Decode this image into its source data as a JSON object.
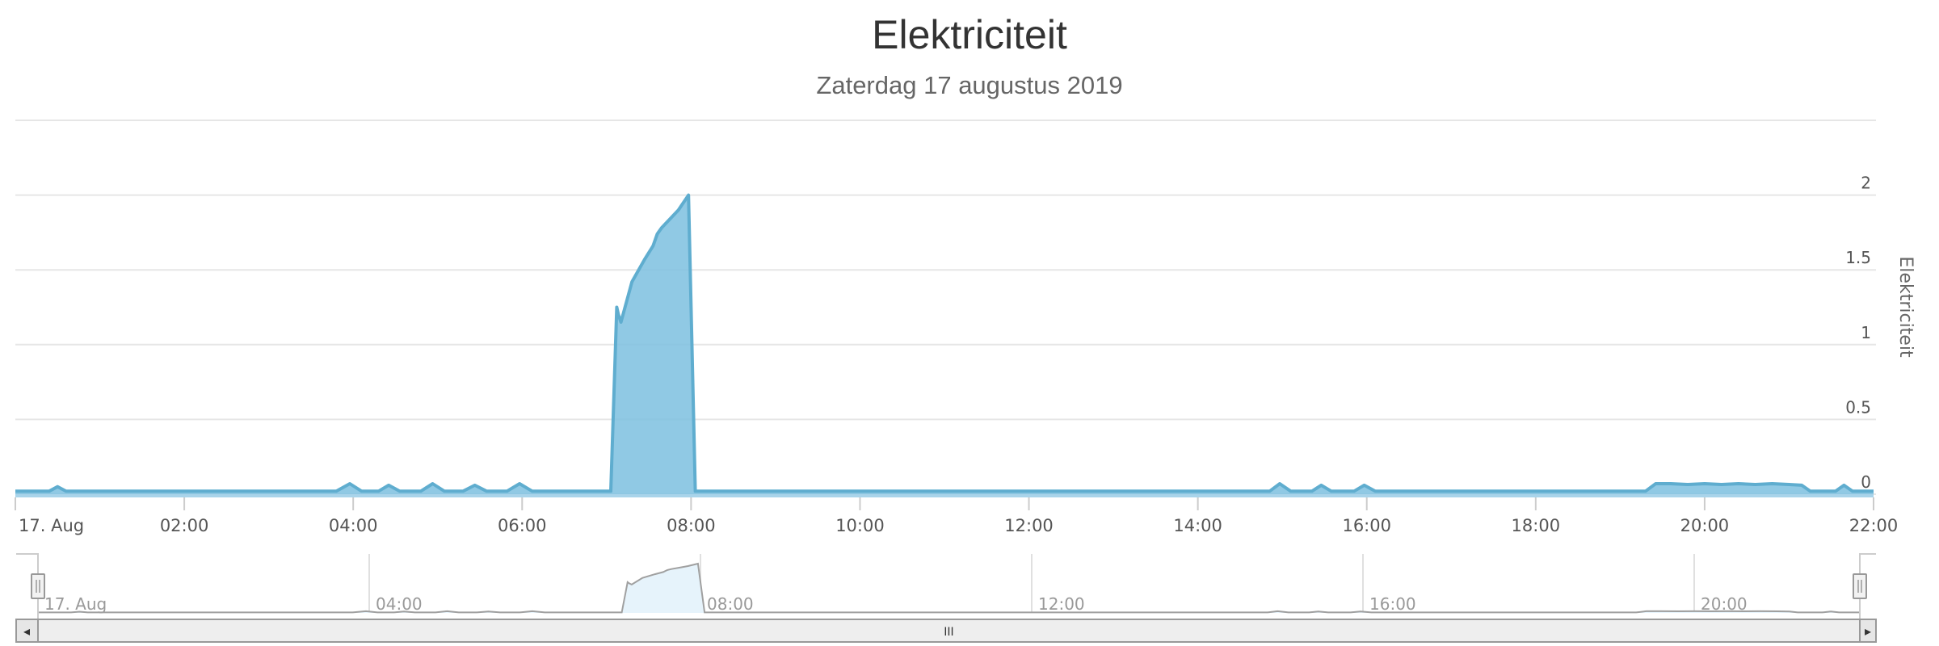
{
  "header": {
    "title": "Elektriciteit",
    "subtitle": "Zaterdag 17 augustus 2019"
  },
  "colors": {
    "series_fill": "#7cbfdf",
    "series_line": "#5fadcf",
    "grid": "#e6e6e6",
    "navigator_fill": "#e6f3fb",
    "navigator_line": "#a0a0a0",
    "scrollbar_bg": "#eeeeee",
    "scrollbar_border": "#999999"
  },
  "chart_data": {
    "type": "area",
    "title": "Elektriciteit",
    "subtitle": "Zaterdag 17 augustus 2019",
    "xlabel": "",
    "ylabel": "Elektriciteit",
    "x_unit": "hours",
    "xlim": [
      0,
      22
    ],
    "ylim": [
      0,
      2.5
    ],
    "grid": true,
    "legend": "none",
    "x_tick_labels": [
      "17. Aug",
      "02:00",
      "04:00",
      "06:00",
      "08:00",
      "10:00",
      "12:00",
      "14:00",
      "16:00",
      "18:00",
      "20:00",
      "22:00"
    ],
    "x_ticks": [
      0,
      2,
      4,
      6,
      8,
      10,
      12,
      14,
      16,
      18,
      20,
      22
    ],
    "y_ticks": [
      0,
      0.5,
      1,
      1.5,
      2,
      2.5
    ],
    "y_tick_labels": [
      "0",
      "0.5",
      "1",
      "1.5",
      "2",
      ""
    ],
    "series": [
      {
        "name": "Elektriciteit",
        "x": [
          0,
          0.4,
          0.5,
          0.6,
          3.8,
          3.96,
          4.1,
          4.3,
          4.42,
          4.55,
          4.8,
          4.94,
          5.08,
          5.3,
          5.44,
          5.58,
          5.82,
          5.97,
          6.12,
          7.05,
          7.12,
          7.14,
          7.17,
          7.3,
          7.45,
          7.55,
          7.6,
          7.65,
          7.75,
          7.85,
          7.97,
          8.05,
          8.1,
          14.85,
          14.97,
          15.1,
          15.35,
          15.46,
          15.58,
          15.85,
          15.97,
          16.1,
          19.3,
          19.42,
          19.6,
          19.8,
          20.0,
          20.2,
          20.4,
          20.6,
          20.8,
          21.0,
          21.15,
          21.25,
          21.55,
          21.65,
          21.75,
          22
        ],
        "values": [
          0.02,
          0.02,
          0.05,
          0.02,
          0.02,
          0.07,
          0.02,
          0.02,
          0.06,
          0.02,
          0.02,
          0.07,
          0.02,
          0.02,
          0.06,
          0.02,
          0.02,
          0.07,
          0.02,
          0.02,
          1.25,
          1.2,
          1.15,
          1.42,
          1.57,
          1.66,
          1.74,
          1.78,
          1.84,
          1.9,
          2.0,
          0.02,
          0.02,
          0.02,
          0.07,
          0.02,
          0.02,
          0.06,
          0.02,
          0.02,
          0.06,
          0.02,
          0.02,
          0.07,
          0.07,
          0.065,
          0.07,
          0.065,
          0.07,
          0.065,
          0.07,
          0.065,
          0.06,
          0.02,
          0.02,
          0.06,
          0.02,
          0.02
        ]
      }
    ]
  },
  "navigator": {
    "tick_labels": [
      "17. Aug",
      "04:00",
      "08:00",
      "12:00",
      "16:00",
      "20:00"
    ],
    "ticks": [
      0,
      4,
      8,
      12,
      16,
      20
    ]
  },
  "scrollbar": {
    "left_arrow": "◂",
    "right_arrow": "▸",
    "grip": "III"
  }
}
